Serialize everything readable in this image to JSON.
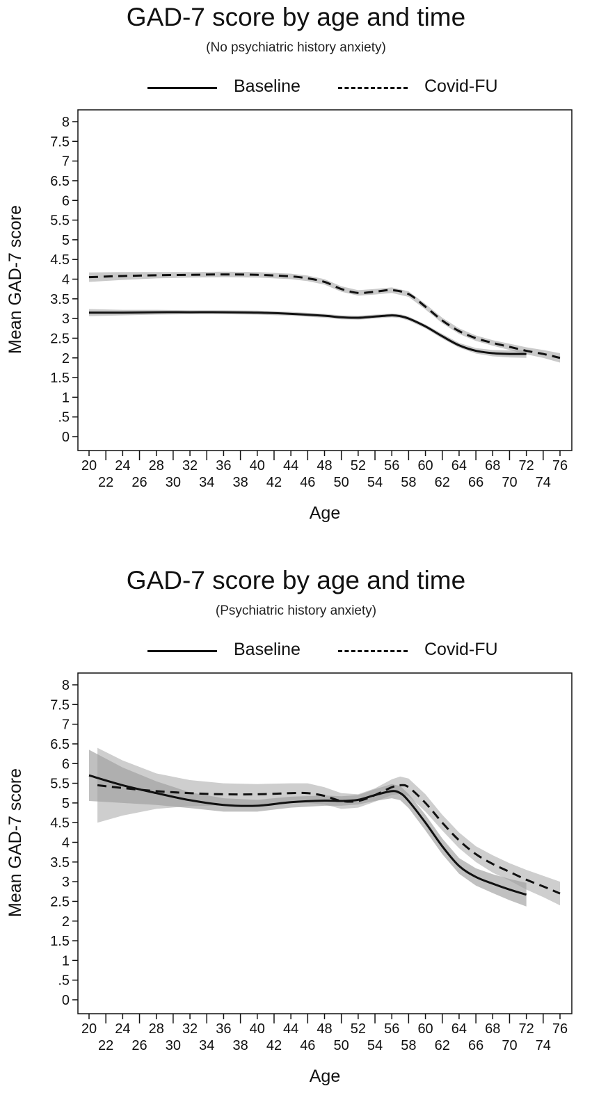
{
  "chart_data": [
    {
      "type": "line",
      "title": "GAD-7 score by age and time",
      "subtitle": "(No psychiatric history anxiety)",
      "xlabel": "Age",
      "ylabel": "Mean GAD-7 score",
      "xlim": [
        20,
        76
      ],
      "ylim": [
        0,
        8
      ],
      "x_ticks": [
        20,
        22,
        24,
        26,
        28,
        30,
        32,
        34,
        36,
        38,
        40,
        42,
        44,
        46,
        48,
        50,
        52,
        54,
        56,
        58,
        60,
        62,
        64,
        66,
        68,
        70,
        72,
        74,
        76
      ],
      "y_ticks": [
        {
          "value": 8,
          "label": "8"
        },
        {
          "value": 7.5,
          "label": "7.5"
        },
        {
          "value": 7,
          "label": "7"
        },
        {
          "value": 6.5,
          "label": "6.5"
        },
        {
          "value": 6,
          "label": "6"
        },
        {
          "value": 5.5,
          "label": "5.5"
        },
        {
          "value": 5,
          "label": "5"
        },
        {
          "value": 4.5,
          "label": "4.5"
        },
        {
          "value": 4,
          "label": "4"
        },
        {
          "value": 3.5,
          "label": "3.5"
        },
        {
          "value": 3,
          "label": "3"
        },
        {
          "value": 2.5,
          "label": "2.5"
        },
        {
          "value": 2,
          "label": "2"
        },
        {
          "value": 1.5,
          "label": "1.5"
        },
        {
          "value": 1,
          "label": "1"
        },
        {
          "value": 0.5,
          "label": ".5"
        },
        {
          "value": 0,
          "label": "0"
        }
      ],
      "legend": [
        "Baseline",
        "Covid-FU"
      ],
      "series": [
        {
          "name": "Baseline",
          "style": "solid",
          "x": [
            20,
            24,
            28,
            32,
            36,
            40,
            44,
            48,
            50,
            52,
            54,
            56,
            57,
            58,
            60,
            62,
            64,
            66,
            68,
            70,
            72
          ],
          "values": [
            3.15,
            3.15,
            3.16,
            3.16,
            3.16,
            3.15,
            3.12,
            3.07,
            3.03,
            3.02,
            3.05,
            3.08,
            3.06,
            3.0,
            2.8,
            2.55,
            2.32,
            2.18,
            2.12,
            2.1,
            2.1
          ],
          "ci_half_width": [
            0.09,
            0.07,
            0.06,
            0.05,
            0.05,
            0.05,
            0.05,
            0.05,
            0.05,
            0.05,
            0.05,
            0.05,
            0.05,
            0.05,
            0.05,
            0.06,
            0.06,
            0.07,
            0.08,
            0.09,
            0.1
          ]
        },
        {
          "name": "Covid-FU",
          "style": "dashed",
          "x": [
            20,
            24,
            28,
            32,
            36,
            40,
            44,
            46,
            48,
            50,
            52,
            54,
            56,
            58,
            60,
            62,
            64,
            66,
            68,
            70,
            72,
            74,
            76
          ],
          "values": [
            4.05,
            4.08,
            4.1,
            4.11,
            4.12,
            4.11,
            4.07,
            4.02,
            3.93,
            3.75,
            3.65,
            3.68,
            3.72,
            3.62,
            3.3,
            2.95,
            2.68,
            2.5,
            2.38,
            2.28,
            2.18,
            2.1,
            2.0
          ],
          "ci_half_width": [
            0.12,
            0.1,
            0.08,
            0.07,
            0.07,
            0.07,
            0.07,
            0.07,
            0.07,
            0.07,
            0.07,
            0.07,
            0.07,
            0.07,
            0.07,
            0.07,
            0.07,
            0.07,
            0.07,
            0.08,
            0.09,
            0.1,
            0.12
          ]
        }
      ]
    },
    {
      "type": "line",
      "title": "GAD-7 score by age and time",
      "subtitle": "(Psychiatric history anxiety)",
      "xlabel": "Age",
      "ylabel": "Mean GAD-7 score",
      "xlim": [
        20,
        76
      ],
      "ylim": [
        0,
        8
      ],
      "x_ticks": [
        20,
        22,
        24,
        26,
        28,
        30,
        32,
        34,
        36,
        38,
        40,
        42,
        44,
        46,
        48,
        50,
        52,
        54,
        56,
        58,
        60,
        62,
        64,
        66,
        68,
        70,
        72,
        74,
        76
      ],
      "y_ticks": [
        {
          "value": 8,
          "label": "8"
        },
        {
          "value": 7.5,
          "label": "7.5"
        },
        {
          "value": 7,
          "label": "7"
        },
        {
          "value": 6.5,
          "label": "6.5"
        },
        {
          "value": 6,
          "label": "6"
        },
        {
          "value": 5.5,
          "label": "5.5"
        },
        {
          "value": 5,
          "label": "5"
        },
        {
          "value": 4.5,
          "label": "4.5"
        },
        {
          "value": 4,
          "label": "4"
        },
        {
          "value": 3.5,
          "label": "3.5"
        },
        {
          "value": 3,
          "label": "3"
        },
        {
          "value": 2.5,
          "label": "2.5"
        },
        {
          "value": 2,
          "label": "2"
        },
        {
          "value": 1.5,
          "label": "1.5"
        },
        {
          "value": 1,
          "label": "1"
        },
        {
          "value": 0.5,
          "label": ".5"
        },
        {
          "value": 0,
          "label": "0"
        }
      ],
      "legend": [
        "Baseline",
        "Covid-FU"
      ],
      "series": [
        {
          "name": "Baseline",
          "style": "solid",
          "x": [
            20,
            24,
            28,
            32,
            36,
            40,
            44,
            48,
            50,
            52,
            54,
            56,
            57,
            58,
            60,
            62,
            64,
            66,
            68,
            70,
            72
          ],
          "values": [
            5.7,
            5.45,
            5.25,
            5.07,
            4.95,
            4.93,
            5.02,
            5.06,
            5.05,
            5.08,
            5.2,
            5.3,
            5.25,
            5.05,
            4.5,
            3.9,
            3.4,
            3.12,
            2.95,
            2.8,
            2.67
          ],
          "ci_half_width": [
            0.65,
            0.45,
            0.3,
            0.2,
            0.17,
            0.15,
            0.14,
            0.13,
            0.12,
            0.12,
            0.15,
            0.18,
            0.18,
            0.18,
            0.2,
            0.2,
            0.2,
            0.22,
            0.24,
            0.27,
            0.3
          ]
        },
        {
          "name": "Covid-FU",
          "style": "dashed",
          "x": [
            21,
            24,
            28,
            32,
            36,
            40,
            44,
            46,
            48,
            50,
            52,
            54,
            56,
            57,
            58,
            60,
            62,
            64,
            66,
            68,
            70,
            72,
            74,
            76
          ],
          "values": [
            5.45,
            5.38,
            5.3,
            5.25,
            5.22,
            5.22,
            5.25,
            5.25,
            5.18,
            5.05,
            5.05,
            5.2,
            5.4,
            5.45,
            5.4,
            5.0,
            4.5,
            4.05,
            3.7,
            3.45,
            3.25,
            3.05,
            2.88,
            2.7
          ],
          "ci_half_width": [
            0.95,
            0.7,
            0.45,
            0.33,
            0.28,
            0.26,
            0.25,
            0.25,
            0.22,
            0.2,
            0.17,
            0.17,
            0.2,
            0.22,
            0.22,
            0.22,
            0.2,
            0.2,
            0.2,
            0.22,
            0.22,
            0.25,
            0.27,
            0.3
          ]
        }
      ]
    }
  ]
}
